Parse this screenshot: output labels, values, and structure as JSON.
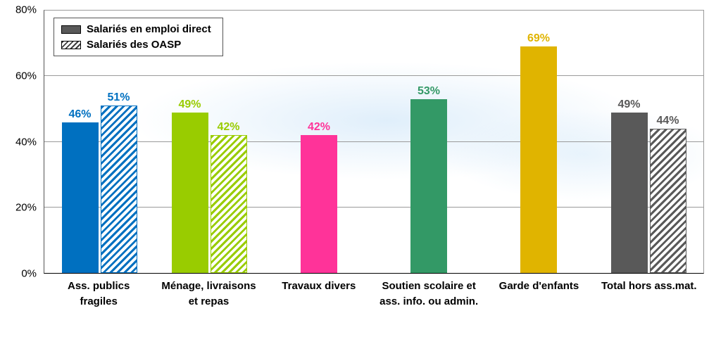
{
  "chart_data": {
    "type": "bar",
    "title": "",
    "xlabel": "",
    "ylabel": "",
    "ylim": [
      0,
      80
    ],
    "yticks": [
      "0%",
      "20%",
      "40%",
      "60%",
      "80%"
    ],
    "grid": true,
    "legend_position": "top-left",
    "series": [
      {
        "name": "Salariés en emploi direct",
        "style": "solid"
      },
      {
        "name": "Salariés des OASP",
        "style": "hatched"
      }
    ],
    "categories": [
      {
        "label": "Ass. publics fragiles",
        "color": "#0070C0",
        "direct": 46,
        "oasp": 51
      },
      {
        "label": "Ménage, livraisons et repas",
        "color": "#99CC00",
        "direct": 49,
        "oasp": 42
      },
      {
        "label": "Travaux divers",
        "color": "#FF3399",
        "direct": 42,
        "oasp": null
      },
      {
        "label": "Soutien scolaire et ass. info. ou admin.",
        "color": "#339966",
        "direct": 53,
        "oasp": null
      },
      {
        "label": "Garde d'enfants",
        "color": "#E0B400",
        "direct": 69,
        "oasp": null
      },
      {
        "label": "Total hors ass.mat.",
        "color": "#595959",
        "direct": 49,
        "oasp": 44
      }
    ]
  }
}
